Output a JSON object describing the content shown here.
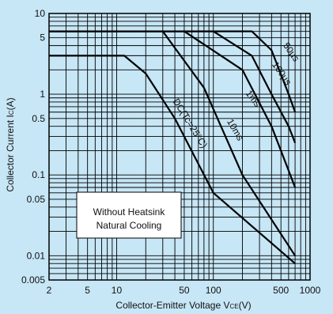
{
  "chart_data": {
    "type": "line",
    "title": "",
    "xlabel": "Collector-Emitter Voltage V",
    "xlabel_sub": "CE",
    "xlabel_unit": "(V)",
    "ylabel": "Collector Current I",
    "ylabel_sub": "C",
    "ylabel_unit": "(A)",
    "x_scale": "log",
    "y_scale": "log",
    "xlim": [
      2,
      1000
    ],
    "ylim": [
      0.005,
      10
    ],
    "grid": true,
    "background_color": "#c7e6f6",
    "line_color": "#000000",
    "x_ticks": [
      {
        "value": 2,
        "label": "2"
      },
      {
        "value": 5,
        "label": "5"
      },
      {
        "value": 10,
        "label": "10"
      },
      {
        "value": 50,
        "label": "50"
      },
      {
        "value": 100,
        "label": "100"
      },
      {
        "value": 500,
        "label": "500"
      },
      {
        "value": 1000,
        "label": "1000"
      }
    ],
    "y_ticks": [
      {
        "value": 10,
        "label": "10"
      },
      {
        "value": 5,
        "label": "5"
      },
      {
        "value": 1,
        "label": "1"
      },
      {
        "value": 0.5,
        "label": "0.5"
      },
      {
        "value": 0.1,
        "label": "0.1"
      },
      {
        "value": 0.05,
        "label": "0.05"
      },
      {
        "value": 0.01,
        "label": "0.01"
      },
      {
        "value": 0.005,
        "label": "0.005"
      }
    ],
    "series": [
      {
        "name": "50µs",
        "x": [
          2,
          250,
          400,
          600,
          700
        ],
        "y": [
          6,
          6,
          3.5,
          1,
          0.6
        ]
      },
      {
        "name": "100µs",
        "x": [
          2,
          100,
          250,
          400,
          600,
          700
        ],
        "y": [
          6,
          6,
          3,
          1,
          0.4,
          0.25
        ]
      },
      {
        "name": "1ms",
        "x": [
          2,
          50,
          200,
          400,
          700
        ],
        "y": [
          6,
          6,
          2,
          0.4,
          0.07
        ]
      },
      {
        "name": "10ms",
        "x": [
          2,
          30,
          80,
          200,
          700
        ],
        "y": [
          6,
          6,
          1.2,
          0.1,
          0.01
        ]
      },
      {
        "name": "DC(Tc=25°C)",
        "x": [
          2,
          12,
          20,
          40,
          100,
          700
        ],
        "y": [
          3,
          3,
          1.8,
          0.5,
          0.06,
          0.008
        ]
      }
    ],
    "series_labels": [
      "50µs",
      "100µs",
      "1ms",
      "10ms",
      "DC(Tc=25°C)"
    ],
    "legend_box": {
      "line1": "Without Heatsink",
      "line2": "Natural Cooling"
    }
  }
}
